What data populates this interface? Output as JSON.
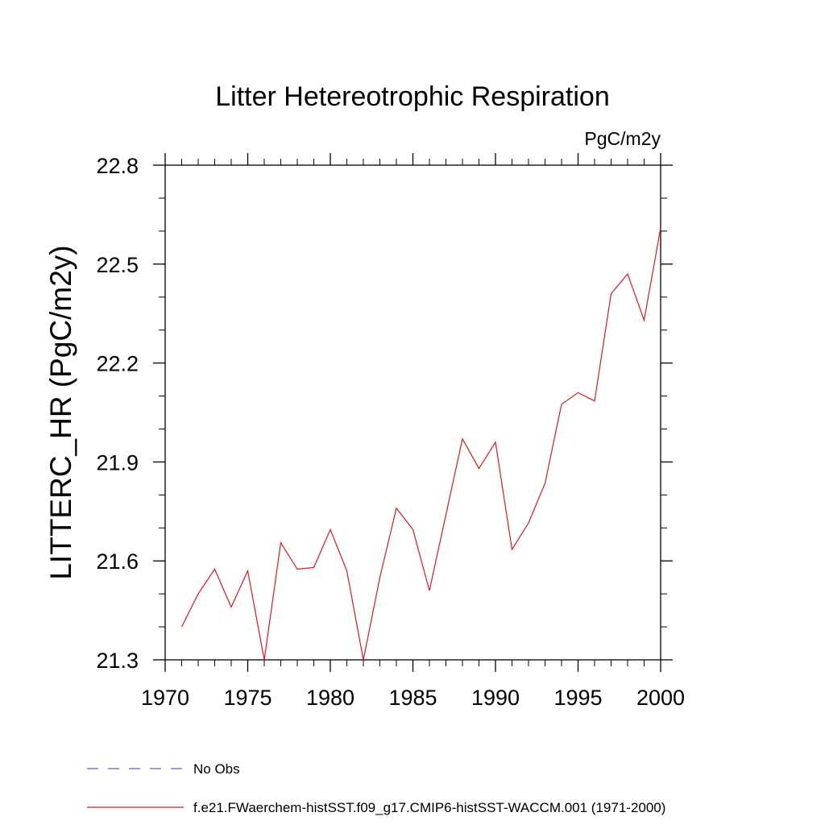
{
  "chart_data": {
    "type": "line",
    "title": "Litter Hetereotrophic Respiration",
    "units_label": "PgC/m2y",
    "ylabel": "LITTERC_HR  (PgC/m2y)",
    "xlabel": "",
    "xlim": [
      1970,
      2000
    ],
    "ylim": [
      21.3,
      22.8
    ],
    "x_ticks": [
      1970,
      1975,
      1980,
      1985,
      1990,
      1995,
      2000
    ],
    "y_ticks": [
      21.3,
      21.6,
      21.9,
      22.2,
      22.5,
      22.8
    ],
    "x_tick_labels": [
      "1970",
      "1975",
      "1980",
      "1985",
      "1990",
      "1995",
      "2000"
    ],
    "y_tick_labels": [
      "21.3",
      "21.6",
      "21.9",
      "22.2",
      "22.5",
      "22.8"
    ],
    "series": [
      {
        "name": "f.e21.FWaerchem-histSST.f09_g17.CMIP6-histSST-WACCM.001 (1971-2000)",
        "color": "#e8141b",
        "style": "solid",
        "x": [
          1971,
          1972,
          1973,
          1974,
          1975,
          1976,
          1977,
          1978,
          1979,
          1980,
          1981,
          1982,
          1983,
          1984,
          1985,
          1986,
          1987,
          1988,
          1989,
          1990,
          1991,
          1992,
          1993,
          1994,
          1995,
          1996,
          1997,
          1998,
          1999,
          2000
        ],
        "y": [
          21.4,
          21.5,
          21.575,
          21.46,
          21.57,
          21.3,
          21.655,
          21.575,
          21.58,
          21.695,
          21.57,
          21.3,
          21.55,
          21.76,
          21.695,
          21.51,
          21.74,
          21.97,
          21.88,
          21.96,
          21.635,
          21.715,
          21.835,
          22.075,
          22.11,
          22.085,
          22.41,
          22.47,
          22.33,
          22.61
        ]
      }
    ],
    "legend": [
      {
        "label": "No Obs",
        "color": "#6a5acd",
        "style": "dashed"
      },
      {
        "label": "f.e21.FWaerchem-histSST.f09_g17.CMIP6-histSST-WACCM.001 (1971-2000)",
        "color": "#e8141b",
        "style": "solid"
      }
    ],
    "legend_position": "bottom",
    "grid": false
  }
}
